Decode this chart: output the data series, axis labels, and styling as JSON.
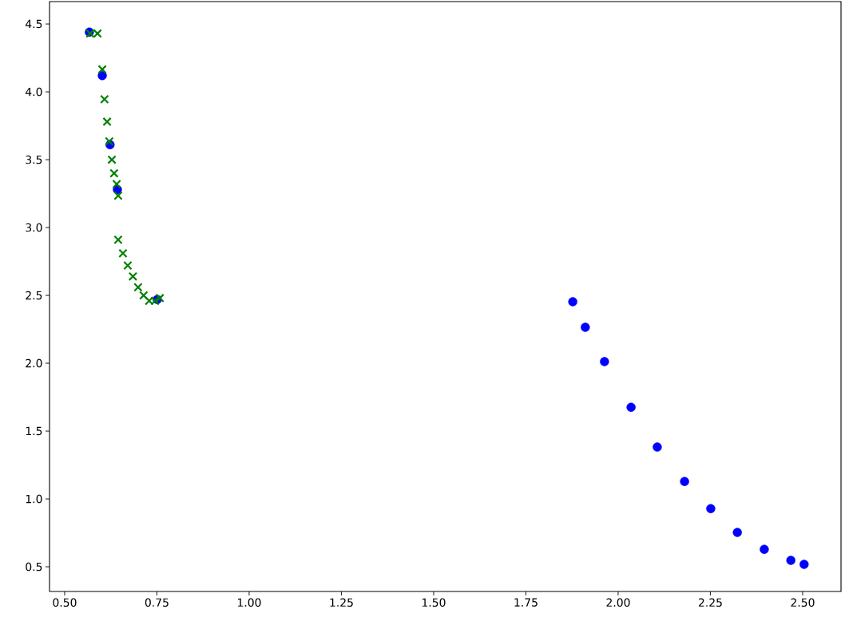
{
  "chart_data": {
    "type": "scatter",
    "series": [
      {
        "color": "#0000ff",
        "marker": "circle",
        "x": [
          0.567,
          0.602,
          0.623,
          0.643,
          0.751,
          1.877,
          1.911,
          1.963,
          2.035,
          2.106,
          2.18,
          2.251,
          2.323,
          2.396,
          2.468,
          2.504
        ],
        "values": [
          4.44,
          4.12,
          3.61,
          3.28,
          2.47,
          2.453,
          2.265,
          2.012,
          1.676,
          1.382,
          1.129,
          0.929,
          0.753,
          0.629,
          0.547,
          0.518
        ]
      },
      {
        "color": "#008000",
        "marker": "cross",
        "x": [
          0.569,
          0.589,
          0.602,
          0.608,
          0.615,
          0.621,
          0.628,
          0.634,
          0.641,
          0.645,
          0.645,
          0.658,
          0.671,
          0.685,
          0.699,
          0.714,
          0.729,
          0.745,
          0.758
        ],
        "values": [
          4.43,
          4.43,
          4.165,
          3.945,
          3.78,
          3.635,
          3.5,
          3.4,
          3.32,
          3.235,
          2.91,
          2.81,
          2.72,
          2.64,
          2.56,
          2.5,
          2.46,
          2.46,
          2.48
        ]
      }
    ],
    "xlim": [
      0.459,
      2.604
    ],
    "ylim": [
      0.318,
      4.665
    ],
    "xticks": [
      {
        "value": 0.5,
        "label": "0.50"
      },
      {
        "value": 0.75,
        "label": "0.75"
      },
      {
        "value": 1.0,
        "label": "1.00"
      },
      {
        "value": 1.25,
        "label": "1.25"
      },
      {
        "value": 1.5,
        "label": "1.50"
      },
      {
        "value": 1.75,
        "label": "1.75"
      },
      {
        "value": 2.0,
        "label": "2.00"
      },
      {
        "value": 2.25,
        "label": "2.25"
      },
      {
        "value": 2.5,
        "label": "2.50"
      }
    ],
    "yticks": [
      0.5,
      {
        "value": 1,
        "label": "1.0"
      },
      1.5,
      {
        "value": 2,
        "label": "2.0"
      },
      2.5,
      {
        "value": 3,
        "label": "3.0"
      },
      3.5,
      {
        "value": 4,
        "label": "4.0"
      },
      4.5
    ]
  }
}
